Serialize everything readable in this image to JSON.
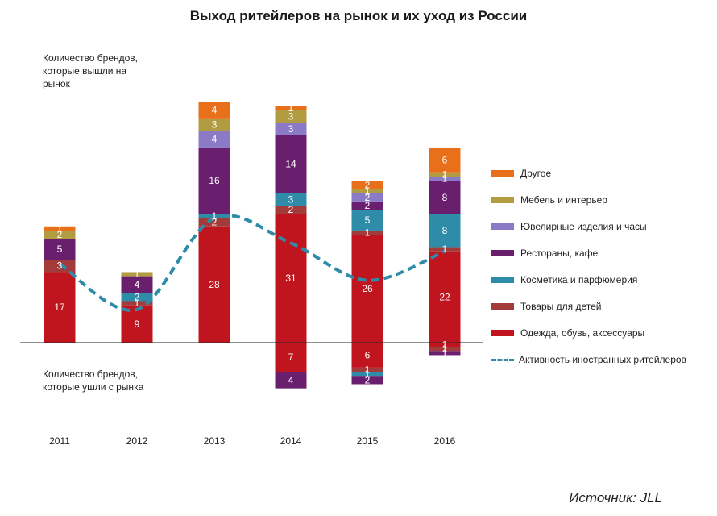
{
  "chart_data": {
    "type": "bar",
    "stacked": true,
    "title": "Выход ритейлеров на рынок и их уход из России",
    "categories": [
      "2011",
      "2012",
      "2013",
      "2014",
      "2015",
      "2016"
    ],
    "upper_axis_label": "Количество брендов, которые вышли на рынок",
    "lower_axis_label": "Количество брендов, которые ушли с рынка",
    "source": "Источник: JLL",
    "legend_position": "right",
    "series": [
      {
        "name": "Одежда, обувь, аксессуары",
        "color": "#c0151f",
        "entered": [
          17,
          9,
          28,
          31,
          26,
          22
        ],
        "exited": [
          0,
          0,
          0,
          7,
          6,
          1
        ]
      },
      {
        "name": "Товары для детей",
        "color": "#a33b3b",
        "entered": [
          3,
          1,
          2,
          2,
          1,
          1
        ],
        "exited": [
          0,
          0,
          0,
          0,
          1,
          1
        ]
      },
      {
        "name": "Косметика и парфюмерия",
        "color": "#2f8ca8",
        "entered": [
          0,
          2,
          1,
          3,
          5,
          8
        ],
        "exited": [
          0,
          0,
          0,
          0,
          1,
          0
        ]
      },
      {
        "name": "Рестораны, кафе",
        "color": "#6a1f6e",
        "entered": [
          5,
          4,
          16,
          14,
          2,
          8
        ],
        "exited": [
          0,
          0,
          0,
          4,
          2,
          1
        ]
      },
      {
        "name": "Ювелирные изделия и часы",
        "color": "#8b7bc6",
        "entered": [
          0,
          0,
          4,
          3,
          2,
          1
        ],
        "exited": [
          0,
          0,
          0,
          0,
          0,
          0
        ]
      },
      {
        "name": "Мебель и интерьер",
        "color": "#b19c42",
        "entered": [
          2,
          1,
          3,
          3,
          1,
          1
        ],
        "exited": [
          0,
          0,
          0,
          0,
          0,
          0
        ]
      },
      {
        "name": "Другое",
        "color": "#e8701a",
        "entered": [
          1,
          0,
          4,
          1,
          2,
          6
        ],
        "exited": [
          0,
          0,
          0,
          0,
          0,
          0
        ]
      }
    ],
    "line": {
      "name": "Активность иностранных ритейлеров",
      "color": "#2f8ca8",
      "values": [
        19,
        8,
        30,
        24,
        15,
        22
      ]
    }
  }
}
